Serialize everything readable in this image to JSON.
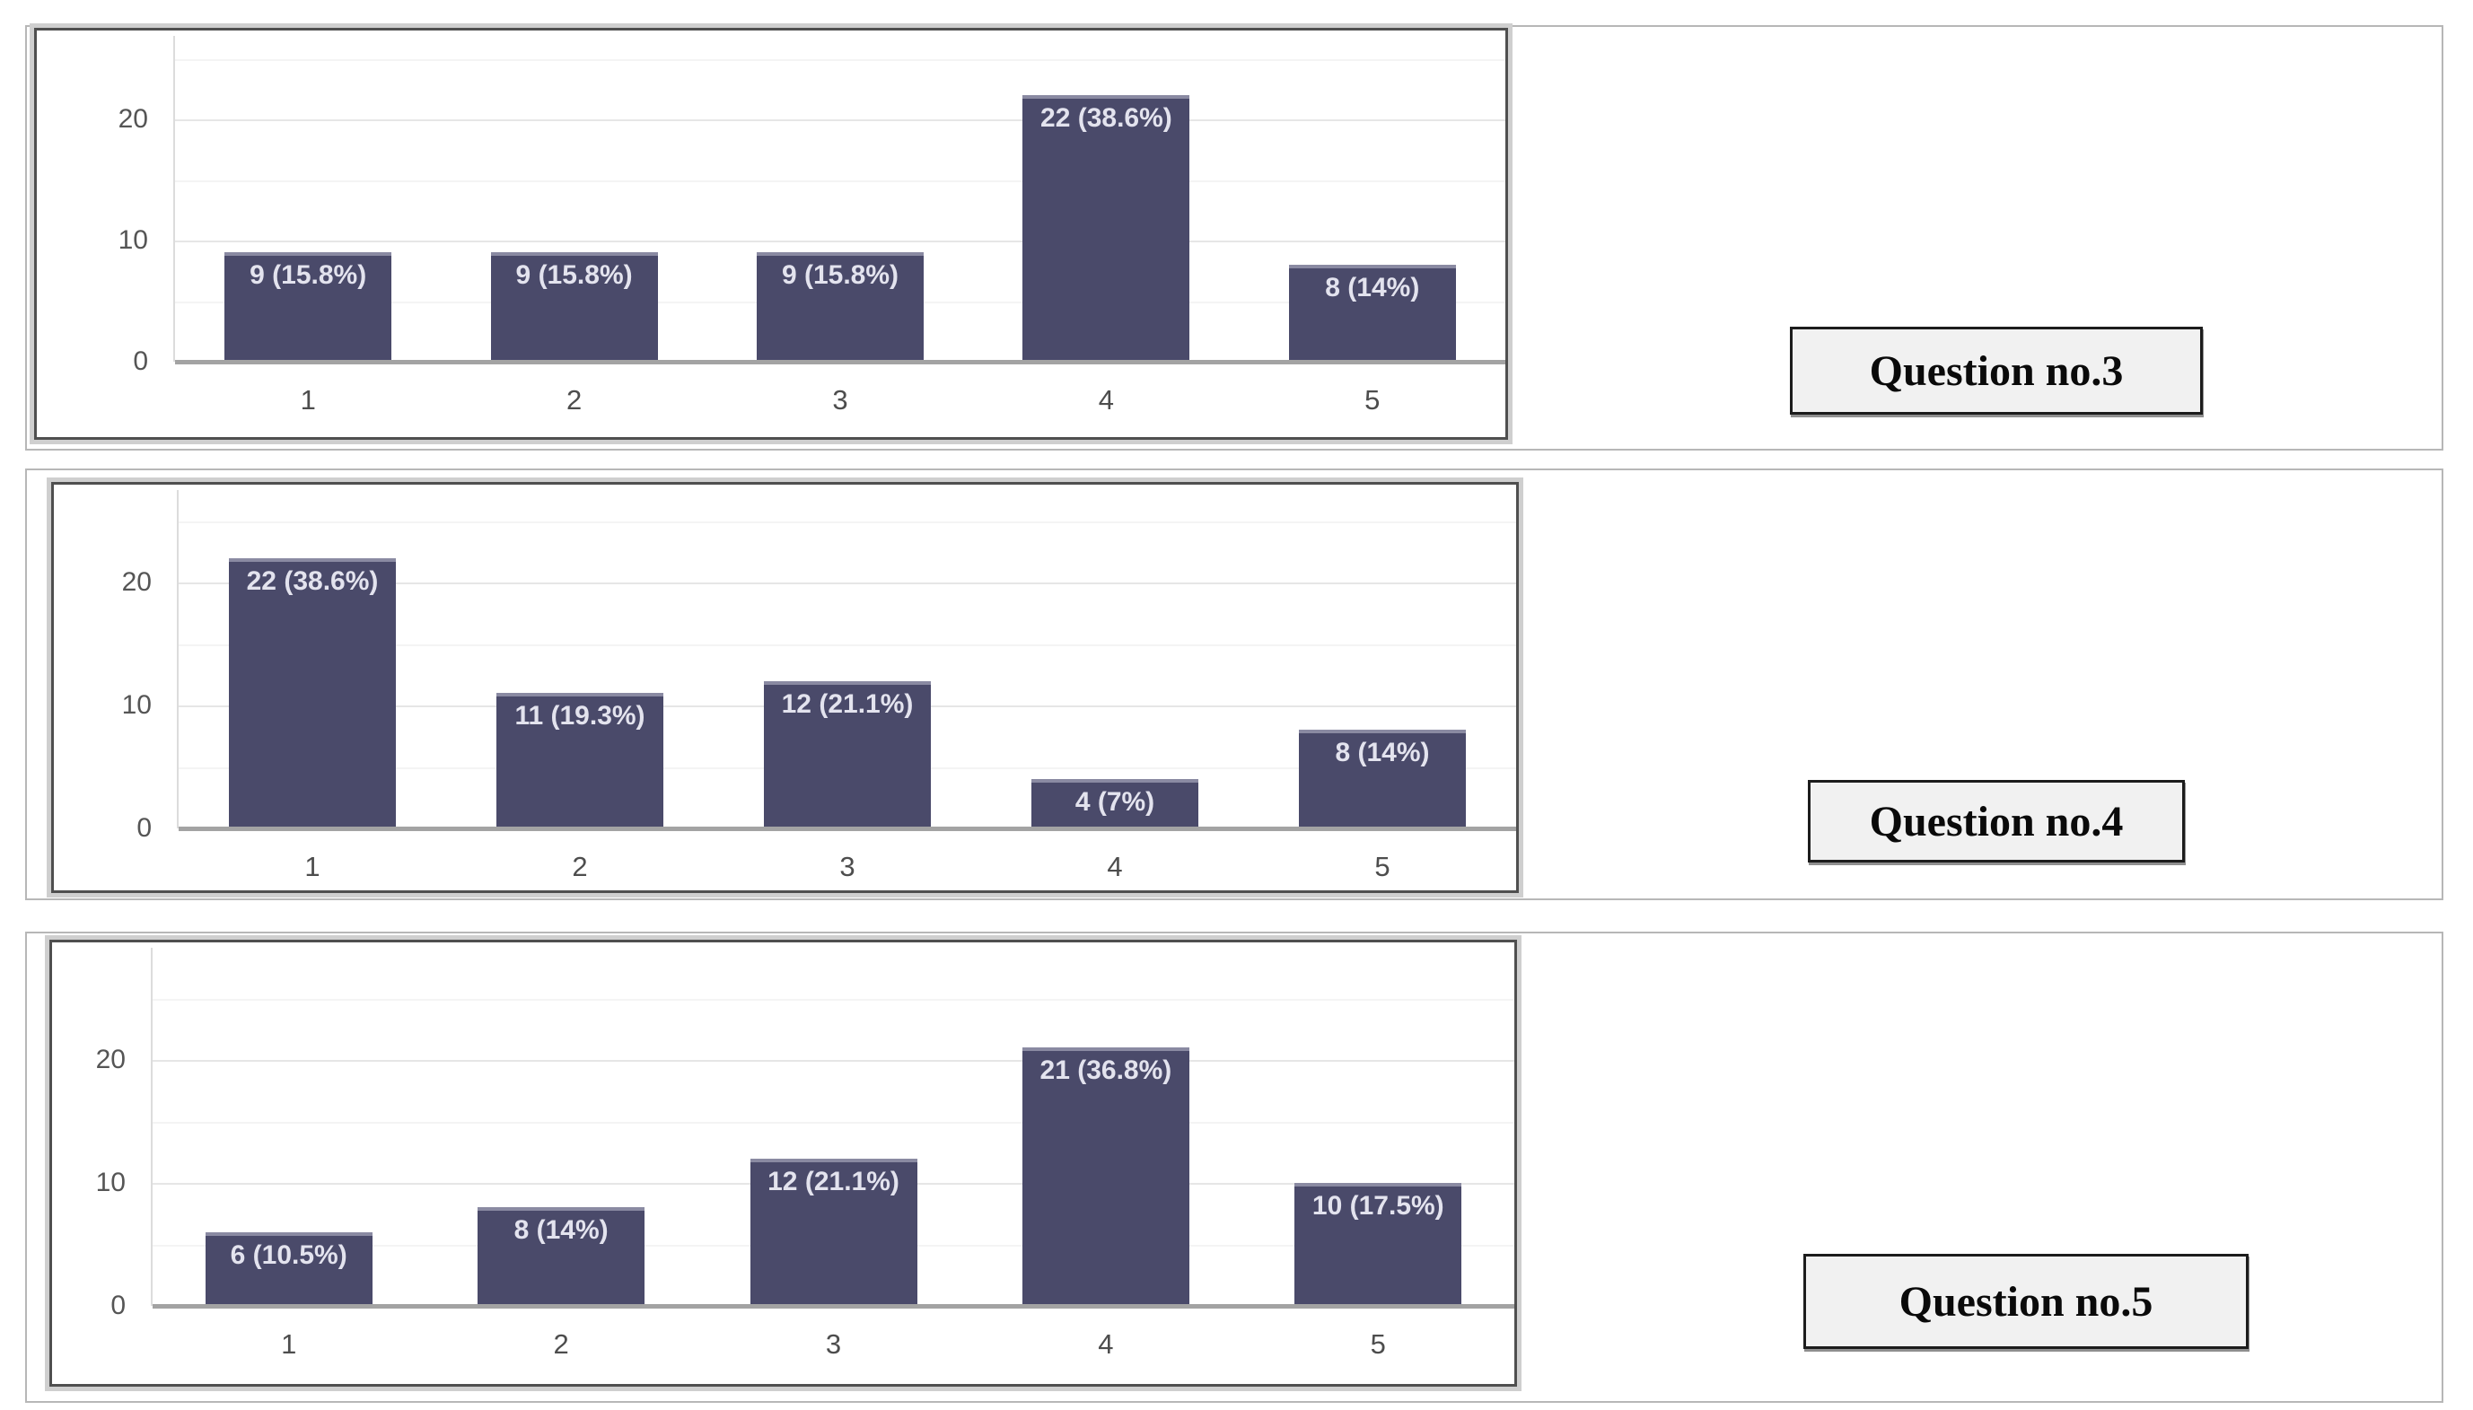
{
  "panels": [
    {
      "label": "Question no.3"
    },
    {
      "label": "Question no.4"
    },
    {
      "label": "Question no.5"
    }
  ],
  "colors": {
    "bar": "#4a4a6a",
    "bar_top_edge": "#8a8aa2",
    "bar_label_text": "#e3e3ee",
    "axis_text": "#555555",
    "baseline": "#a3a3a3",
    "gridline_major": "#e6e6e6",
    "gridline_minor": "#f4f4f4",
    "panel_border": "#b7b7b7",
    "chart_border": "#4f4f4f",
    "label_box_fill": "#f1f1f1"
  },
  "chart_data": [
    {
      "type": "bar",
      "title": "Question no.3",
      "categories": [
        "1",
        "2",
        "3",
        "4",
        "5"
      ],
      "values": [
        9,
        9,
        9,
        22,
        8
      ],
      "bar_labels": [
        "9 (15.8%)",
        "9 (15.8%)",
        "9 (15.8%)",
        "22 (38.6%)",
        "8 (14%)"
      ],
      "yticks": [
        0,
        10,
        20
      ],
      "minor_yticks": [
        5,
        15,
        25
      ],
      "ylim": [
        0,
        27
      ],
      "xlabel": "",
      "ylabel": "",
      "grid": "horizontal",
      "legend": "none"
    },
    {
      "type": "bar",
      "title": "Question no.4",
      "categories": [
        "1",
        "2",
        "3",
        "4",
        "5"
      ],
      "values": [
        22,
        11,
        12,
        4,
        8
      ],
      "bar_labels": [
        "22 (38.6%)",
        "11 (19.3%)",
        "12 (21.1%)",
        "4 (7%)",
        "8 (14%)"
      ],
      "yticks": [
        0,
        10,
        20
      ],
      "minor_yticks": [
        5,
        15,
        25
      ],
      "ylim": [
        0,
        28
      ],
      "xlabel": "",
      "ylabel": "",
      "grid": "horizontal",
      "legend": "none"
    },
    {
      "type": "bar",
      "title": "Question no.5",
      "categories": [
        "1",
        "2",
        "3",
        "4",
        "5"
      ],
      "values": [
        6,
        8,
        12,
        21,
        10
      ],
      "bar_labels": [
        "6 (10.5%)",
        "8 (14%)",
        "12 (21.1%)",
        "21 (36.8%)",
        "10 (17.5%)"
      ],
      "yticks": [
        0,
        10,
        20
      ],
      "minor_yticks": [
        5,
        15,
        25
      ],
      "ylim": [
        0,
        29
      ],
      "xlabel": "",
      "ylabel": "",
      "grid": "horizontal",
      "legend": "none"
    }
  ]
}
